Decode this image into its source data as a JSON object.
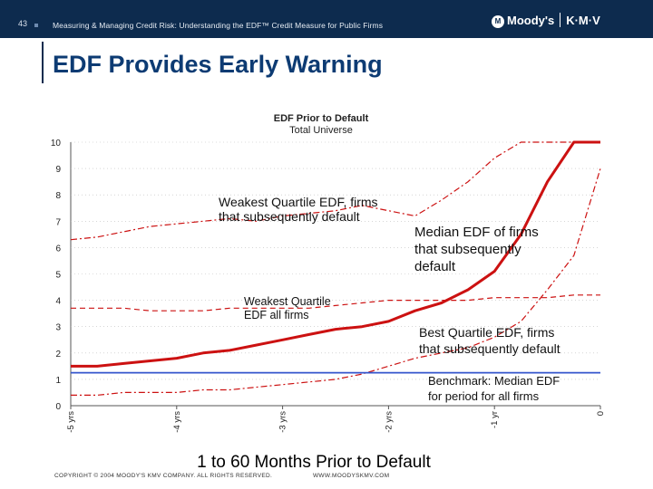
{
  "header": {
    "slide_number": "43",
    "title": "Measuring & Managing Credit Risk: Understanding the EDF™ Credit Measure for Public Firms",
    "logo_text": "Moody's",
    "logo_suffix": "K·M·V",
    "logo_mark": "M"
  },
  "slide_heading": "EDF Provides Early Warning",
  "footer": {
    "copyright": "COPYRIGHT © 2004 MOODY'S KMV COMPANY. ALL RIGHTS RESERVED.",
    "website": "WWW.MOODYSKMV.COM"
  },
  "colors": {
    "navy": "#0d2b4e",
    "heading": "#0d3b73",
    "series_red": "#cc1111",
    "benchmark": "#3355cc"
  },
  "chart_data": {
    "type": "line",
    "title": "EDF Prior to Default",
    "subtitle": "Total Universe",
    "xlabel": "1 to 60 Months Prior to Default",
    "ylabel": "",
    "x": [
      -60,
      -57,
      -54,
      -51,
      -48,
      -45,
      -42,
      -39,
      -36,
      -33,
      -30,
      -27,
      -24,
      -21,
      -18,
      -15,
      -12,
      -9,
      -6,
      -3,
      0
    ],
    "xlim": [
      -60,
      0
    ],
    "ylim": [
      0,
      10
    ],
    "xticks": [
      {
        "value": -60,
        "label": "-5 yrs"
      },
      {
        "value": -48,
        "label": "-4 yrs"
      },
      {
        "value": -36,
        "label": "-3 yrs"
      },
      {
        "value": -24,
        "label": "-2 yrs"
      },
      {
        "value": -12,
        "label": "-1 yr"
      },
      {
        "value": 0,
        "label": "0"
      }
    ],
    "yticks": [
      0,
      1,
      2,
      3,
      4,
      5,
      6,
      7,
      8,
      9,
      10
    ],
    "series": [
      {
        "name": "Weakest Quartile EDF, firms that subsequently default",
        "style": "dash-dot",
        "values": [
          6.3,
          6.4,
          6.6,
          6.8,
          6.9,
          7.0,
          7.1,
          7.0,
          7.2,
          7.3,
          7.4,
          7.6,
          7.4,
          7.2,
          7.8,
          8.5,
          9.4,
          10,
          10,
          10,
          10
        ]
      },
      {
        "name": "Median EDF of firms that subsequently default",
        "style": "solid",
        "values": [
          1.5,
          1.5,
          1.6,
          1.7,
          1.8,
          2.0,
          2.1,
          2.3,
          2.5,
          2.7,
          2.9,
          3.0,
          3.2,
          3.6,
          3.9,
          4.4,
          5.1,
          6.5,
          8.5,
          10,
          10
        ]
      },
      {
        "name": "Weakest Quartile EDF all firms",
        "style": "dashed",
        "values": [
          3.7,
          3.7,
          3.7,
          3.6,
          3.6,
          3.6,
          3.7,
          3.7,
          3.7,
          3.7,
          3.8,
          3.9,
          4.0,
          4.0,
          4.0,
          4.0,
          4.1,
          4.1,
          4.1,
          4.2,
          4.2
        ]
      },
      {
        "name": "Best Quartile EDF, firms that subsequently default",
        "style": "dash-dot",
        "values": [
          0.4,
          0.4,
          0.5,
          0.5,
          0.5,
          0.6,
          0.6,
          0.7,
          0.8,
          0.9,
          1.0,
          1.2,
          1.5,
          1.8,
          2.0,
          2.2,
          2.6,
          3.2,
          4.4,
          5.7,
          9.0
        ]
      },
      {
        "name": "Benchmark: Median EDF for period for all firms",
        "style": "solid-blue",
        "values": [
          1.25,
          1.25,
          1.25,
          1.25,
          1.25,
          1.25,
          1.25,
          1.25,
          1.25,
          1.25,
          1.25,
          1.25,
          1.25,
          1.25,
          1.25,
          1.25,
          1.25,
          1.25,
          1.25,
          1.25,
          1.25
        ]
      }
    ],
    "annotations": [
      {
        "lines": [
          "Weakest Quartile EDF, firms",
          "that subsequently default"
        ]
      },
      {
        "lines": [
          "Median EDF of firms",
          "that subsequently",
          "default"
        ]
      },
      {
        "lines": [
          "Weakest Quartile",
          "EDF all firms"
        ]
      },
      {
        "lines": [
          "Best Quartile EDF, firms",
          "that subsequently default"
        ]
      },
      {
        "lines": [
          "Benchmark:  Median EDF",
          "for period for all firms"
        ]
      }
    ]
  }
}
